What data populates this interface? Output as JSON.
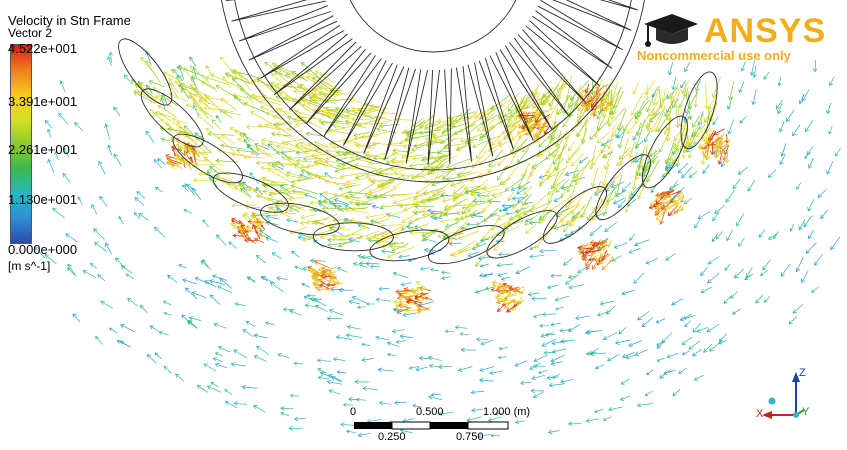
{
  "legend": {
    "title": "Velocity in Stn Frame",
    "subtitle": "Vector 2",
    "ticks": [
      "4.522e+001",
      "3.391e+001",
      "2.261e+001",
      "1.130e+001",
      "0.000e+000"
    ],
    "units": "[m s^-1]",
    "colormap": [
      "#d7191c",
      "#f07e1b",
      "#f7c81e",
      "#d7e01f",
      "#8ccc2a",
      "#3bb94c",
      "#25b9c2",
      "#2e8fd6",
      "#2d49b3"
    ]
  },
  "logo": {
    "brand": "ANSYS",
    "tagline": "Noncommercial use only",
    "color": "#f3ad1c",
    "icon": "graduation-cap-icon"
  },
  "scale_bar": {
    "top_labels": [
      "0",
      "0.500",
      "1.000 (m)"
    ],
    "bottom_labels": [
      "0.250",
      "0.750"
    ]
  },
  "axis_triad": {
    "labels": [
      "Z",
      "Y",
      "X"
    ],
    "colors": {
      "z": "#1d3fa8",
      "y": "#2a9a3a",
      "x": "#c8201e",
      "origin": "#37b3c4"
    }
  },
  "field": {
    "vmax": 45.22,
    "geometry_color": "#2a2a2a"
  }
}
